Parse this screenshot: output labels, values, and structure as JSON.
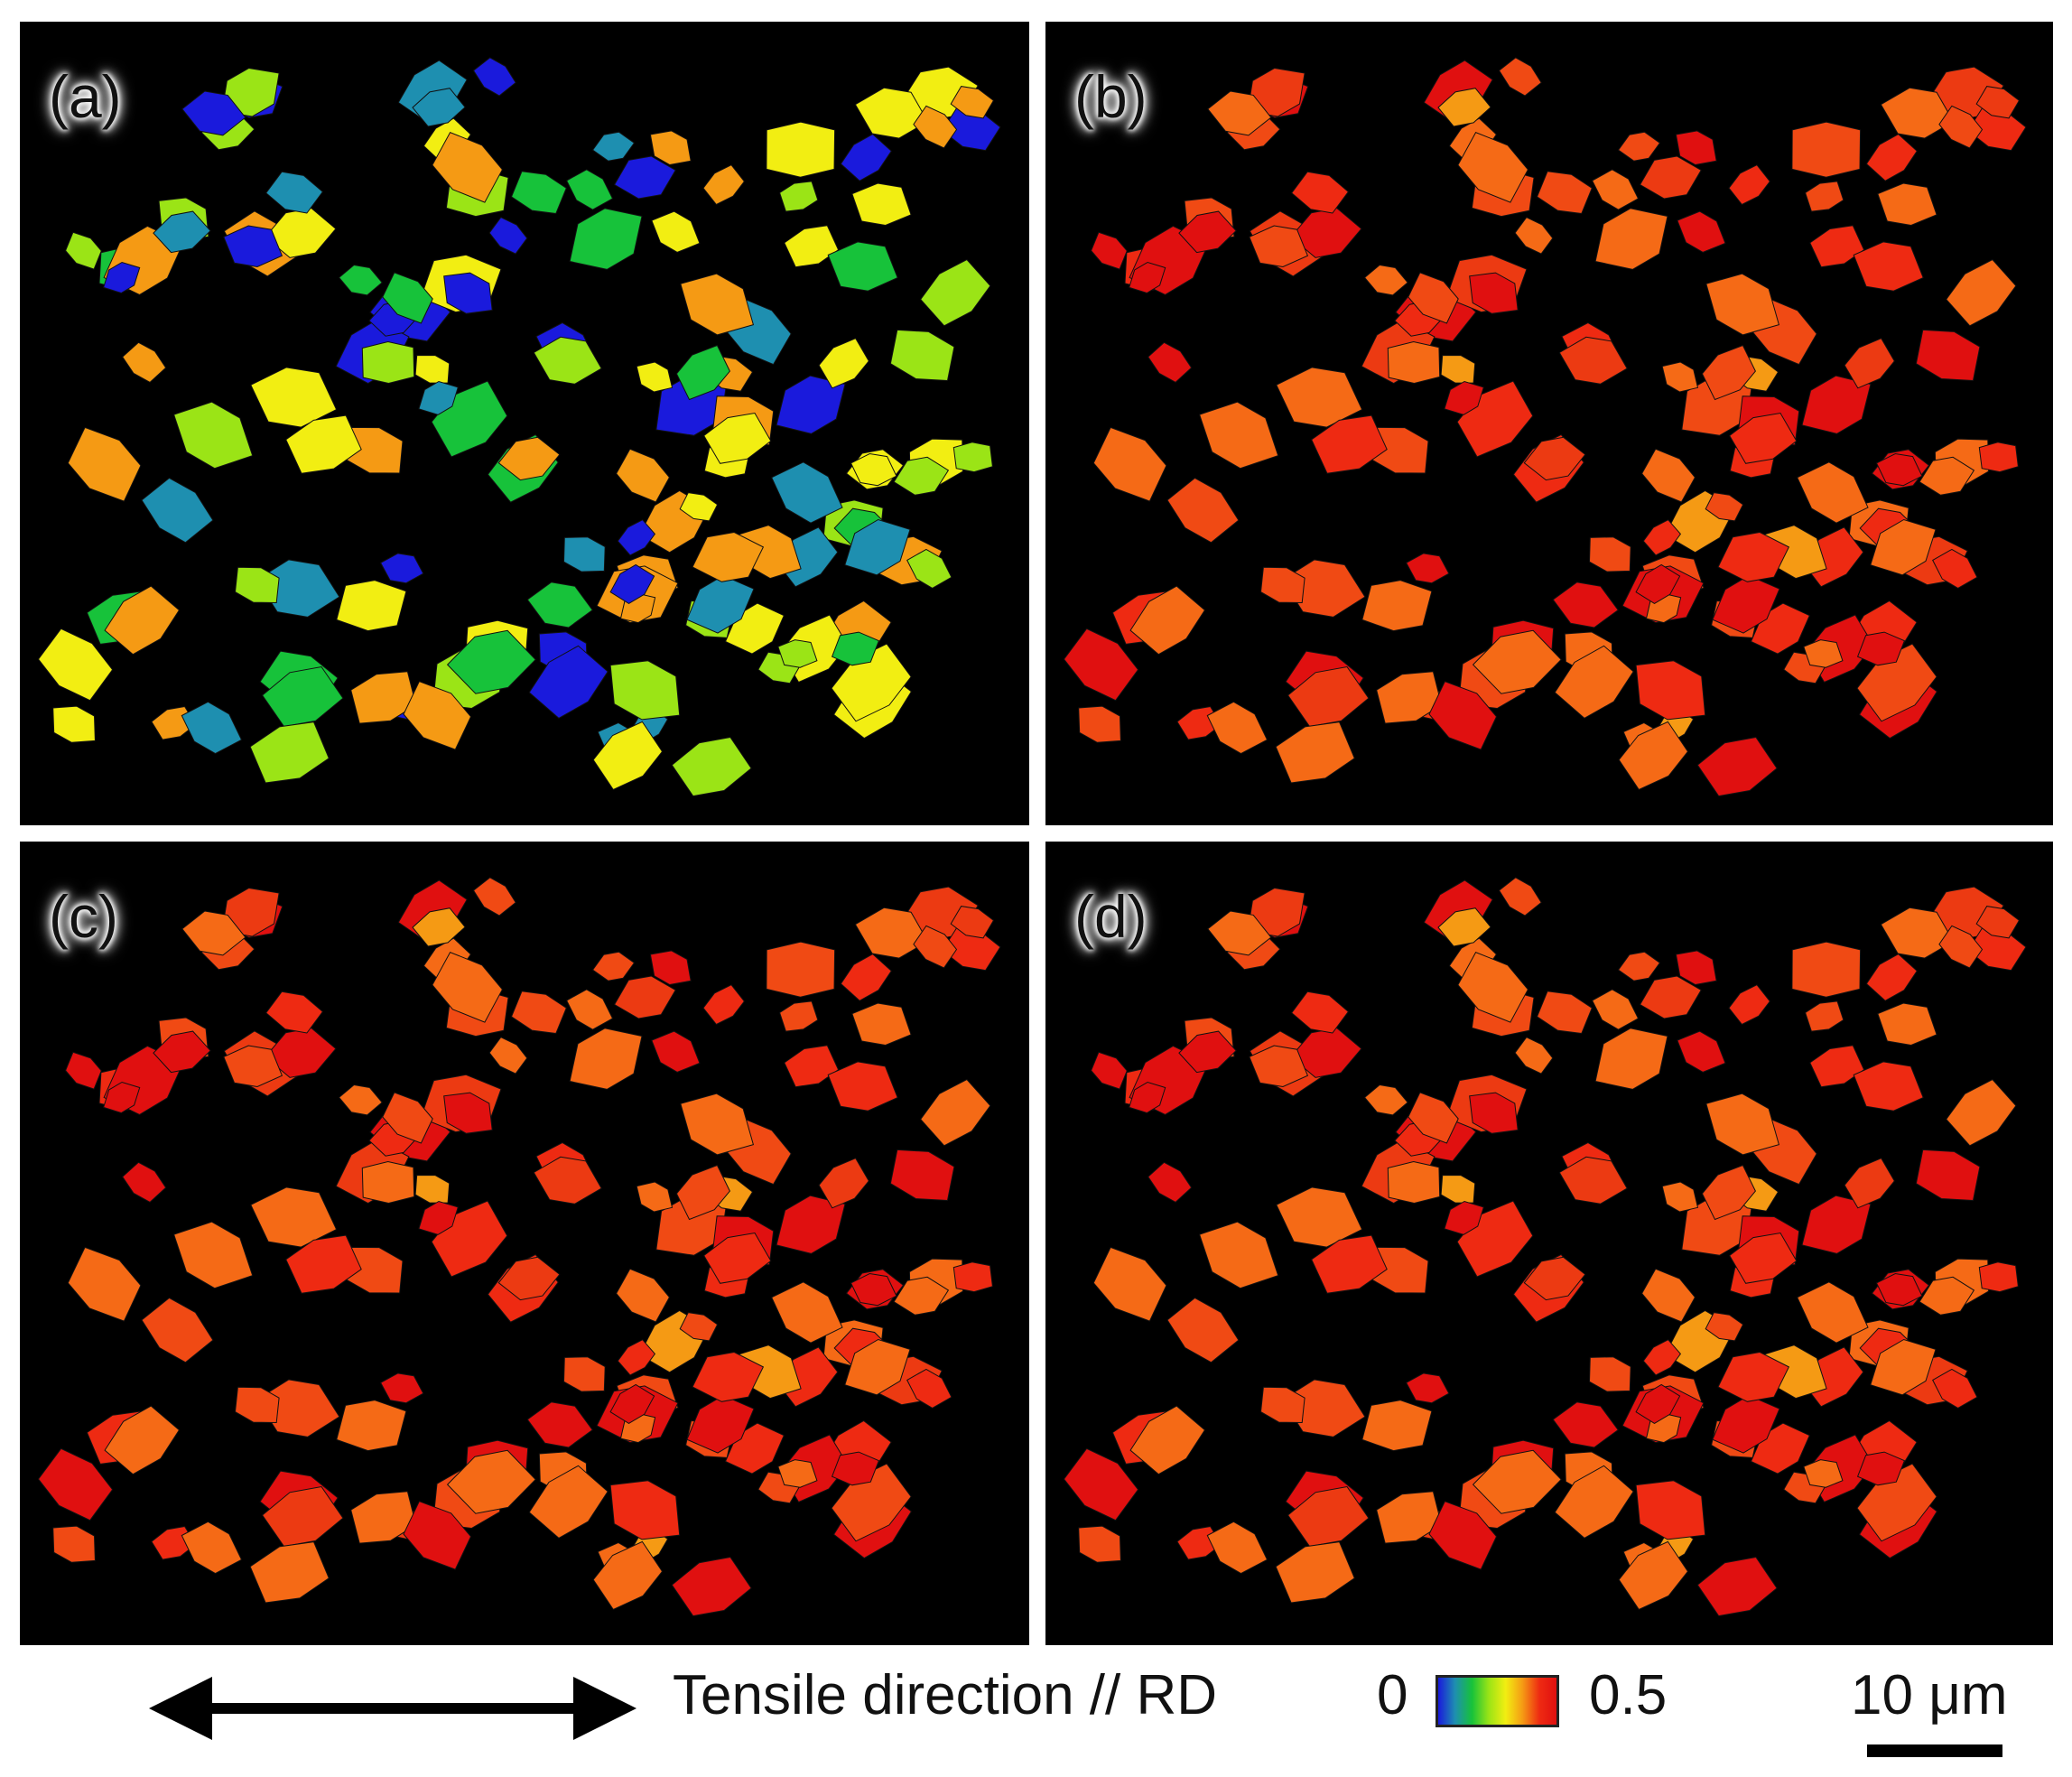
{
  "panels": [
    {
      "label": "(a)",
      "mode": "full"
    },
    {
      "label": "(b)",
      "mode": "warm"
    },
    {
      "label": "(c)",
      "mode": "warm"
    },
    {
      "label": "(d)",
      "mode": "warm"
    }
  ],
  "footer": {
    "direction_label": "Tensile direction // RD",
    "colorbar_min": "0",
    "colorbar_max": "0.5",
    "scale_label": "10 μm"
  },
  "colors": {
    "background": "#000000",
    "colormap": [
      "#1a1adc",
      "#1e8fb0",
      "#17c23a",
      "#9be416",
      "#f2ee12",
      "#f59a14",
      "#ee2a12",
      "#e01010"
    ]
  }
}
